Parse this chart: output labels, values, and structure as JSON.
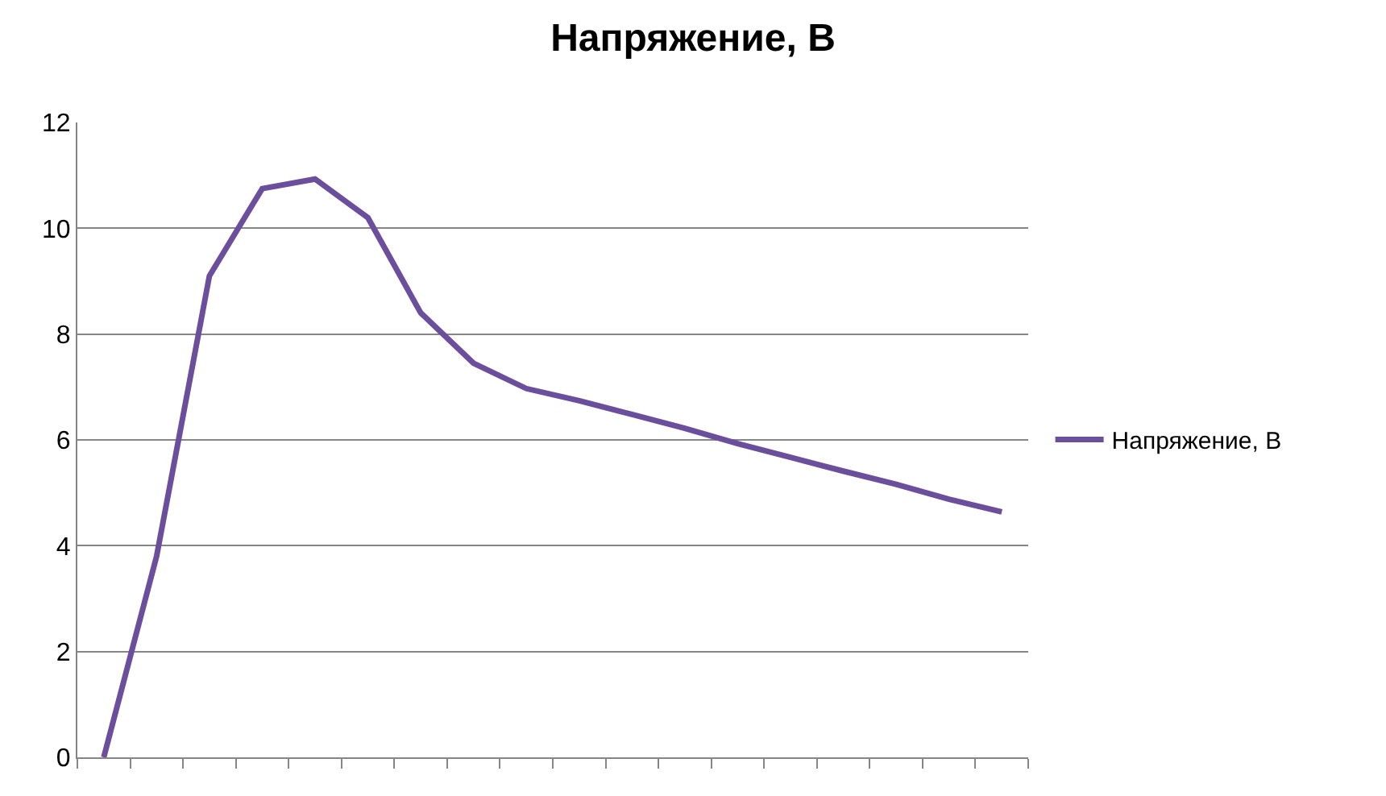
{
  "chart_data": {
    "type": "line",
    "title": "Напряжение, В",
    "categories": [
      null,
      null,
      null,
      null,
      null,
      null,
      null,
      null,
      null,
      null,
      null,
      null,
      null,
      null,
      null,
      null,
      null,
      null
    ],
    "series": [
      {
        "name": "Напряжение, В",
        "color": "#6b4f9c",
        "values": [
          0,
          3.8,
          9.1,
          10.75,
          10.93,
          10.2,
          8.4,
          7.45,
          6.97,
          6.74,
          6.48,
          6.22,
          5.93,
          5.67,
          5.41,
          5.16,
          4.88,
          4.64
        ]
      }
    ],
    "ylim": [
      0,
      12
    ],
    "yticks": [
      0,
      2,
      4,
      6,
      8,
      10,
      12
    ],
    "grid": "y",
    "legend": "right",
    "marker": "none",
    "line_style": "solid"
  }
}
